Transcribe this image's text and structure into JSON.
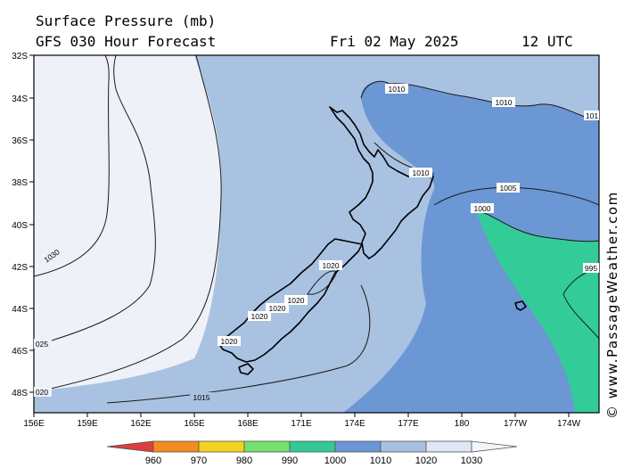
{
  "header": {
    "title": "Surface Pressure (mb)",
    "subtitle": "GFS 030 Hour Forecast",
    "date": "Fri 02 May 2025",
    "time": "12 UTC"
  },
  "credit": "© www.PassageWeather.com",
  "axes": {
    "lat_labels": [
      "32S",
      "34S",
      "36S",
      "38S",
      "40S",
      "42S",
      "44S",
      "46S",
      "48S"
    ],
    "lon_labels": [
      "156E",
      "159E",
      "162E",
      "165E",
      "168E",
      "171E",
      "174E",
      "177E",
      "180",
      "177W",
      "174W"
    ]
  },
  "contour_labels": [
    "1010",
    "1010",
    "101",
    "1010",
    "1005",
    "1000",
    "995",
    "1020",
    "1020",
    "1020",
    "1020",
    "1020",
    "1030",
    "025",
    "020",
    "1015"
  ],
  "legend": {
    "values": [
      "960",
      "970",
      "980",
      "990",
      "1000",
      "1010",
      "1020",
      "1030"
    ],
    "colors": [
      "#e03c3c",
      "#f28c1e",
      "#f5d21e",
      "#74e070",
      "#33c896",
      "#6a96d4",
      "#a8c0e0",
      "#dfe7f4",
      "#f2f5fa"
    ]
  },
  "fill_colors": {
    "highest": "#eef1f8",
    "high": "#a9c2e1",
    "mid": "#6b97d4",
    "low": "#33cc99"
  }
}
